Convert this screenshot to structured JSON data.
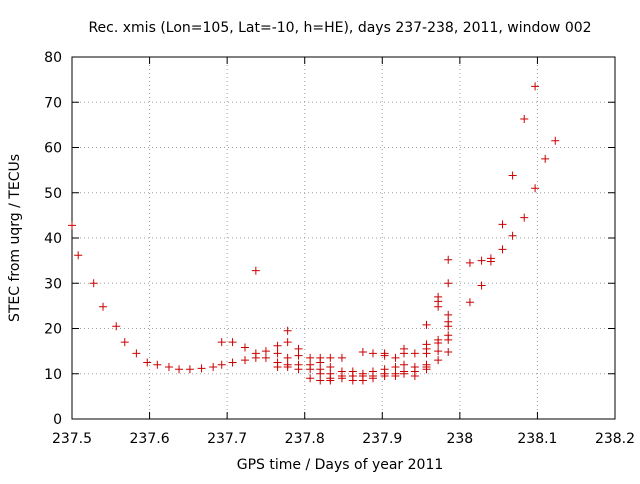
{
  "chart_data": {
    "type": "scatter",
    "title": "Rec. xmis (Lon=105, Lat=-10, h=HE), days 237-238, 2011, window 002",
    "xlabel": "GPS time / Days of year 2011",
    "ylabel": "STEC from uqrg / TECUs",
    "xlim": [
      237.5,
      238.2
    ],
    "ylim": [
      0,
      80
    ],
    "xticks": [
      237.5,
      237.6,
      237.7,
      237.8,
      237.9,
      238,
      238.1,
      238.2
    ],
    "xtick_labels": [
      "237.5",
      "237.6",
      "237.7",
      "237.8",
      "237.9",
      "238",
      "238.1",
      "238.2"
    ],
    "yticks": [
      0,
      10,
      20,
      30,
      40,
      50,
      60,
      70,
      80
    ],
    "ytick_labels": [
      "0",
      "10",
      "20",
      "30",
      "40",
      "50",
      "60",
      "70",
      "80"
    ],
    "grid": true,
    "legend": "none",
    "marker": "+",
    "marker_color": "#cc0000",
    "series": [
      {
        "points": [
          [
            237.5,
            42.8
          ],
          [
            237.508,
            36.2
          ],
          [
            237.528,
            30.0
          ],
          [
            237.54,
            24.8
          ],
          [
            237.557,
            20.5
          ],
          [
            237.568,
            17.0
          ],
          [
            237.583,
            14.5
          ],
          [
            237.597,
            12.5
          ],
          [
            237.61,
            12.0
          ],
          [
            237.625,
            11.5
          ],
          [
            237.638,
            11.0
          ],
          [
            237.652,
            11.0
          ],
          [
            237.667,
            11.2
          ],
          [
            237.682,
            11.5
          ],
          [
            237.693,
            12.0
          ],
          [
            237.693,
            17.0
          ],
          [
            237.707,
            17.0
          ],
          [
            237.707,
            12.5
          ],
          [
            237.723,
            13.0
          ],
          [
            237.723,
            15.8
          ],
          [
            237.737,
            32.8
          ],
          [
            237.737,
            14.5
          ],
          [
            237.737,
            13.5
          ],
          [
            237.75,
            15.0
          ],
          [
            237.75,
            13.5
          ],
          [
            237.765,
            16.2
          ],
          [
            237.765,
            14.5
          ],
          [
            237.765,
            12.5
          ],
          [
            237.765,
            11.5
          ],
          [
            237.778,
            19.5
          ],
          [
            237.778,
            17.0
          ],
          [
            237.778,
            13.5
          ],
          [
            237.778,
            12.0
          ],
          [
            237.778,
            11.5
          ],
          [
            237.792,
            15.5
          ],
          [
            237.792,
            14.0
          ],
          [
            237.792,
            12.0
          ],
          [
            237.792,
            11.0
          ],
          [
            237.807,
            13.5
          ],
          [
            237.807,
            12.0
          ],
          [
            237.807,
            11.0
          ],
          [
            237.807,
            9.0
          ],
          [
            237.82,
            13.5
          ],
          [
            237.82,
            12.5
          ],
          [
            237.82,
            11.0
          ],
          [
            237.82,
            10.0
          ],
          [
            237.82,
            8.5
          ],
          [
            237.833,
            13.5
          ],
          [
            237.833,
            11.5
          ],
          [
            237.833,
            10.0
          ],
          [
            237.833,
            9.0
          ],
          [
            237.833,
            8.5
          ],
          [
            237.848,
            13.5
          ],
          [
            237.848,
            10.5
          ],
          [
            237.848,
            9.5
          ],
          [
            237.848,
            9.0
          ],
          [
            237.862,
            10.5
          ],
          [
            237.862,
            9.5
          ],
          [
            237.862,
            8.5
          ],
          [
            237.875,
            14.8
          ],
          [
            237.875,
            10.0
          ],
          [
            237.875,
            9.5
          ],
          [
            237.875,
            8.5
          ],
          [
            237.888,
            14.5
          ],
          [
            237.888,
            10.5
          ],
          [
            237.888,
            9.5
          ],
          [
            237.888,
            9.0
          ],
          [
            237.903,
            14.0
          ],
          [
            237.903,
            14.5
          ],
          [
            237.903,
            11.0
          ],
          [
            237.903,
            10.0
          ],
          [
            237.903,
            9.5
          ],
          [
            237.917,
            13.5
          ],
          [
            237.917,
            11.5
          ],
          [
            237.917,
            10.0
          ],
          [
            237.917,
            9.5
          ],
          [
            237.928,
            15.5
          ],
          [
            237.928,
            14.5
          ],
          [
            237.928,
            12.0
          ],
          [
            237.928,
            10.5
          ],
          [
            237.928,
            10.0
          ],
          [
            237.942,
            14.5
          ],
          [
            237.942,
            11.5
          ],
          [
            237.942,
            10.5
          ],
          [
            237.942,
            9.5
          ],
          [
            237.957,
            20.8
          ],
          [
            237.957,
            16.5
          ],
          [
            237.957,
            15.5
          ],
          [
            237.957,
            14.5
          ],
          [
            237.957,
            12.0
          ],
          [
            237.957,
            11.5
          ],
          [
            237.957,
            11.0
          ],
          [
            237.972,
            27.0
          ],
          [
            237.972,
            26.0
          ],
          [
            237.972,
            24.8
          ],
          [
            237.972,
            17.5
          ],
          [
            237.972,
            16.8
          ],
          [
            237.972,
            15.0
          ],
          [
            237.972,
            13.0
          ],
          [
            237.985,
            35.2
          ],
          [
            237.985,
            30.0
          ],
          [
            237.985,
            23.0
          ],
          [
            237.985,
            21.5
          ],
          [
            237.985,
            20.5
          ],
          [
            237.985,
            18.5
          ],
          [
            237.985,
            17.5
          ],
          [
            237.985,
            14.8
          ],
          [
            238.013,
            34.5
          ],
          [
            238.013,
            25.8
          ],
          [
            238.028,
            35.0
          ],
          [
            238.028,
            29.5
          ],
          [
            238.04,
            35.5
          ],
          [
            238.04,
            34.8
          ],
          [
            238.055,
            43.0
          ],
          [
            238.055,
            37.5
          ],
          [
            238.068,
            53.8
          ],
          [
            238.068,
            40.5
          ],
          [
            238.083,
            66.3
          ],
          [
            238.083,
            44.5
          ],
          [
            238.097,
            73.5
          ],
          [
            238.097,
            51.0
          ],
          [
            238.11,
            57.5
          ],
          [
            238.123,
            61.5
          ]
        ]
      }
    ]
  }
}
